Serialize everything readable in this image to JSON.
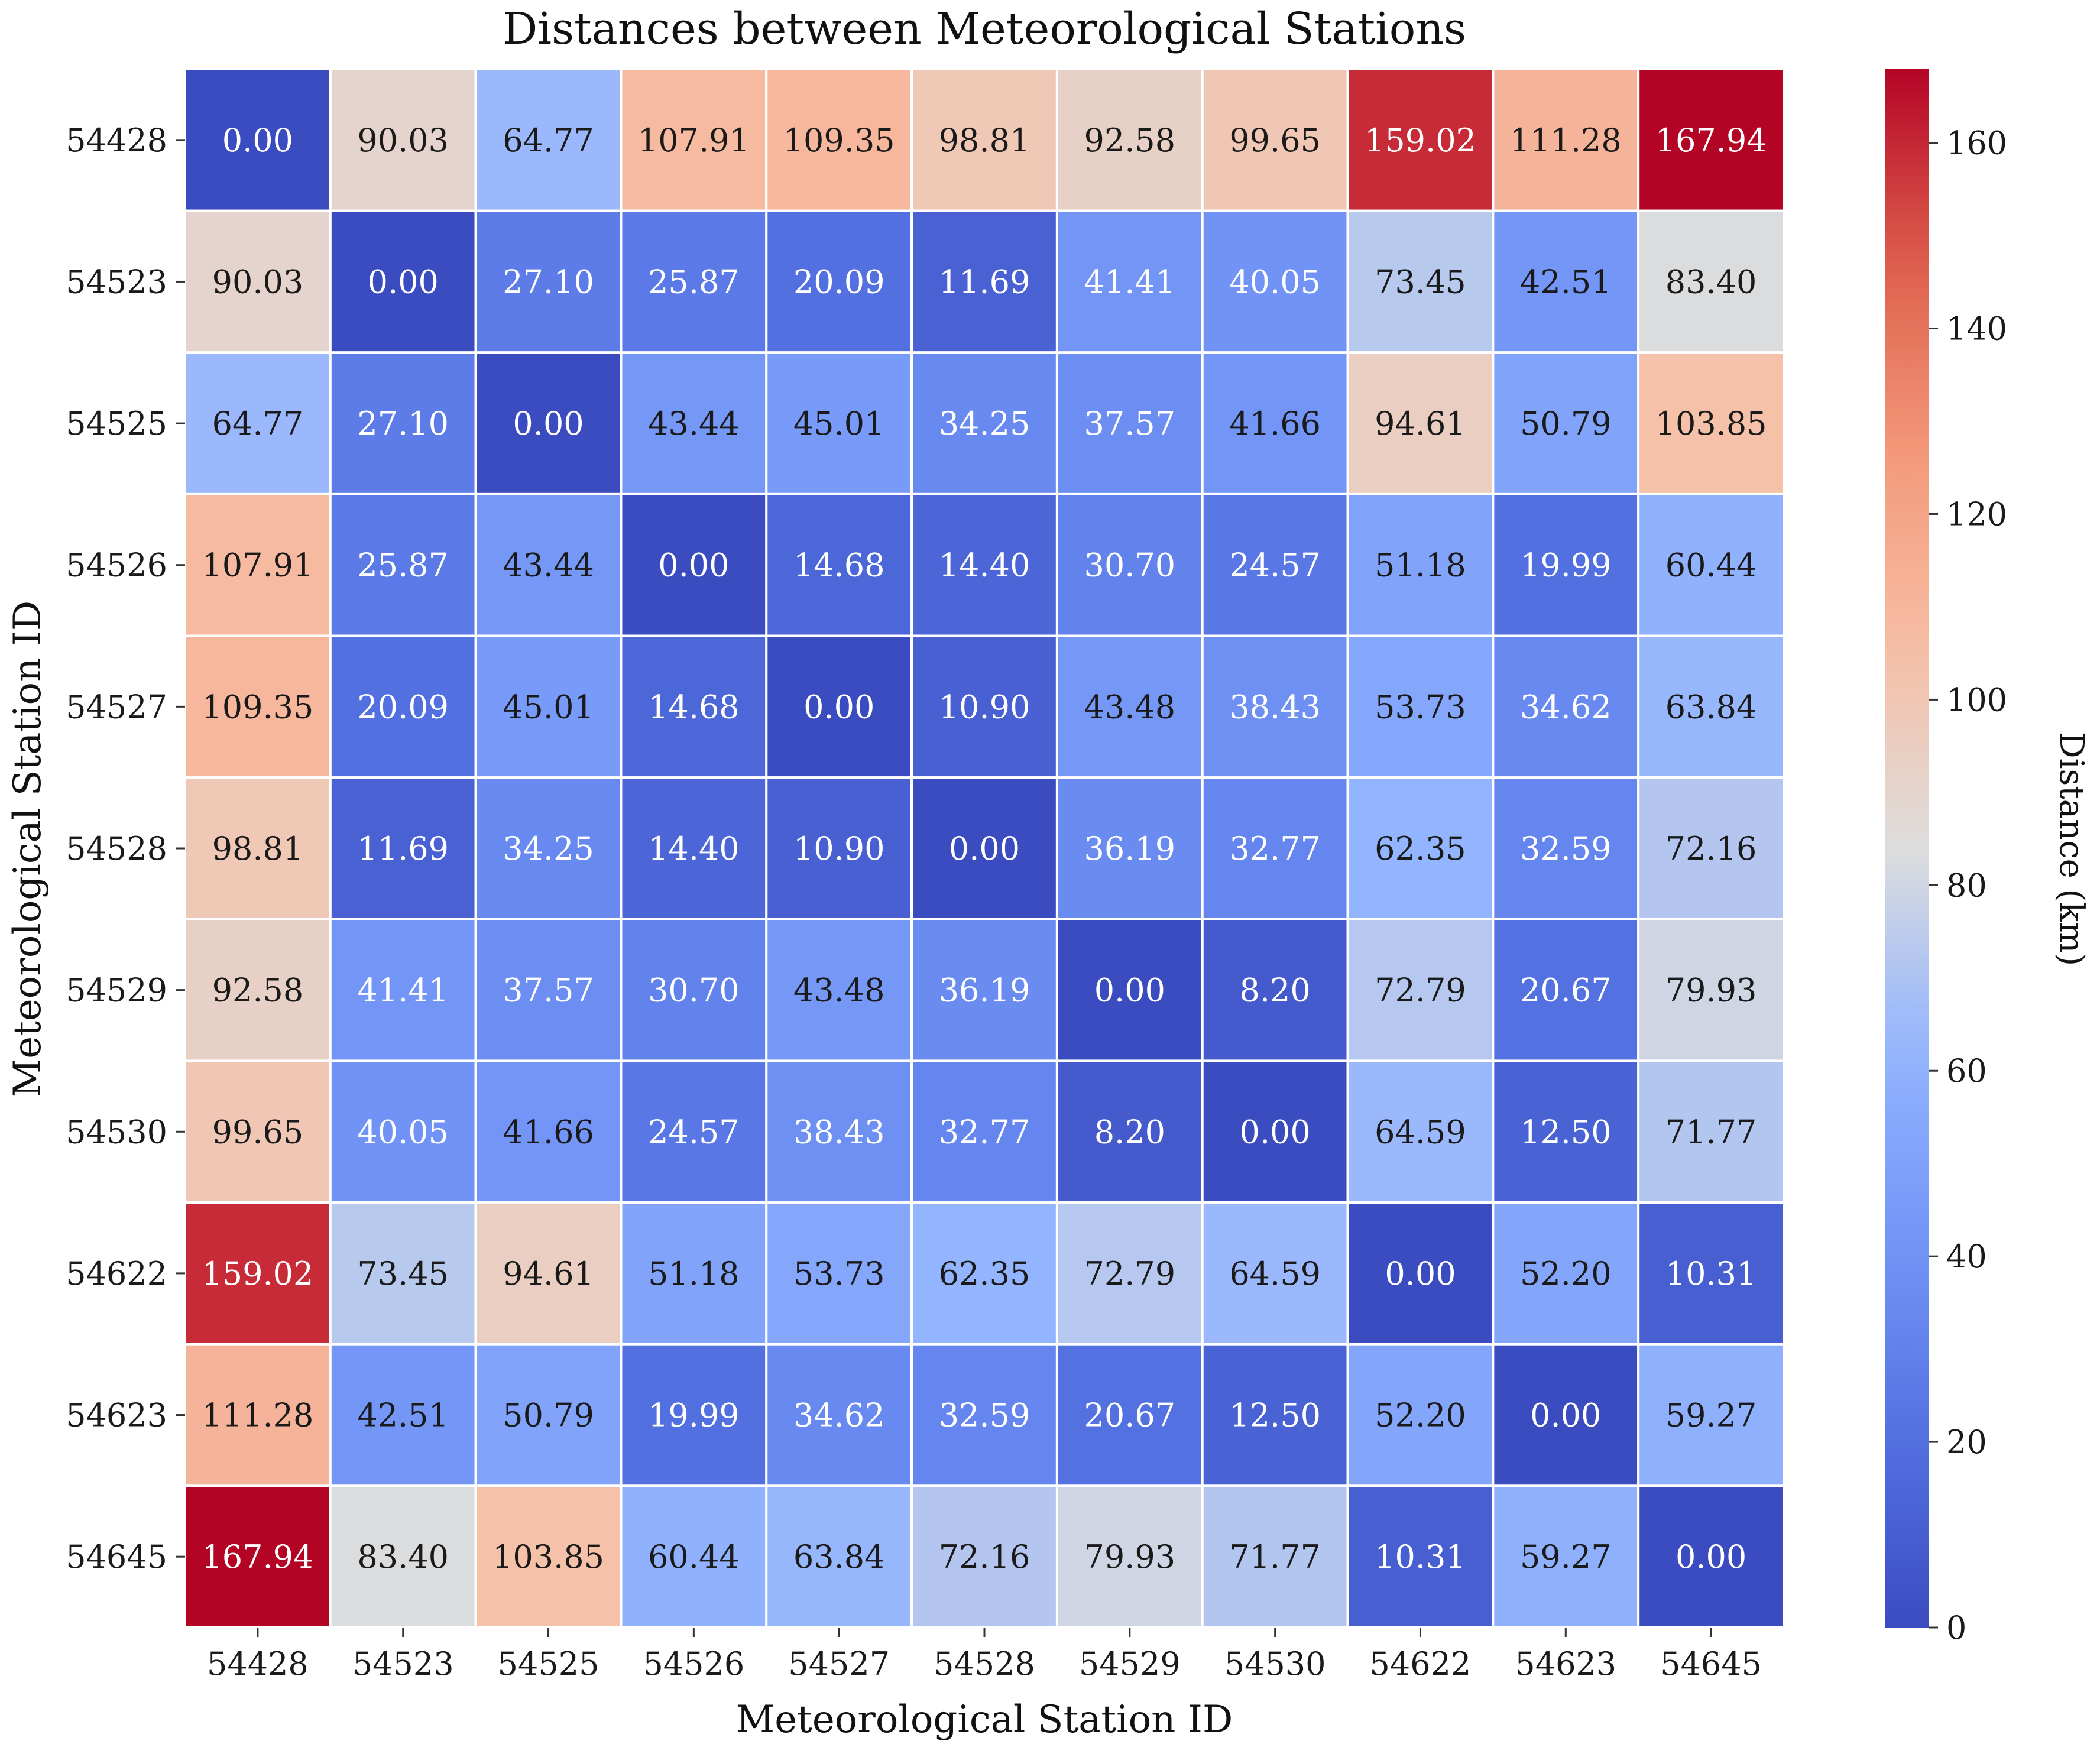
{
  "chart_data": {
    "type": "heatmap",
    "title": "Distances between Meteorological Stations",
    "xlabel": "Meteorological Station ID",
    "ylabel": "Meteorological Station ID",
    "x_categories": [
      "54428",
      "54523",
      "54525",
      "54526",
      "54527",
      "54528",
      "54529",
      "54530",
      "54622",
      "54623",
      "54645"
    ],
    "y_categories": [
      "54428",
      "54523",
      "54525",
      "54526",
      "54527",
      "54528",
      "54529",
      "54530",
      "54622",
      "54623",
      "54645"
    ],
    "values": [
      [
        0.0,
        90.03,
        64.77,
        107.91,
        109.35,
        98.81,
        92.58,
        99.65,
        159.02,
        111.28,
        167.94
      ],
      [
        90.03,
        0.0,
        27.1,
        25.87,
        20.09,
        11.69,
        41.41,
        40.05,
        73.45,
        42.51,
        83.4
      ],
      [
        64.77,
        27.1,
        0.0,
        43.44,
        45.01,
        34.25,
        37.57,
        41.66,
        94.61,
        50.79,
        103.85
      ],
      [
        107.91,
        25.87,
        43.44,
        0.0,
        14.68,
        14.4,
        30.7,
        24.57,
        51.18,
        19.99,
        60.44
      ],
      [
        109.35,
        20.09,
        45.01,
        14.68,
        0.0,
        10.9,
        43.48,
        38.43,
        53.73,
        34.62,
        63.84
      ],
      [
        98.81,
        11.69,
        34.25,
        14.4,
        10.9,
        0.0,
        36.19,
        32.77,
        62.35,
        32.59,
        72.16
      ],
      [
        92.58,
        41.41,
        37.57,
        30.7,
        43.48,
        36.19,
        0.0,
        8.2,
        72.79,
        20.67,
        79.93
      ],
      [
        99.65,
        40.05,
        41.66,
        24.57,
        38.43,
        32.77,
        8.2,
        0.0,
        64.59,
        12.5,
        71.77
      ],
      [
        159.02,
        73.45,
        94.61,
        51.18,
        53.73,
        62.35,
        72.79,
        64.59,
        0.0,
        52.2,
        10.31
      ],
      [
        111.28,
        42.51,
        50.79,
        19.99,
        34.62,
        32.59,
        20.67,
        12.5,
        52.2,
        0.0,
        59.27
      ],
      [
        167.94,
        83.4,
        103.85,
        60.44,
        63.84,
        72.16,
        79.93,
        71.77,
        10.31,
        59.27,
        0.0
      ]
    ],
    "colormap": "coolwarm",
    "vmin": 0,
    "vmax": 167.94,
    "colorbar": {
      "label": "Distance (km)",
      "ticks": [
        0,
        20,
        40,
        60,
        80,
        100,
        120,
        140,
        160
      ]
    }
  }
}
